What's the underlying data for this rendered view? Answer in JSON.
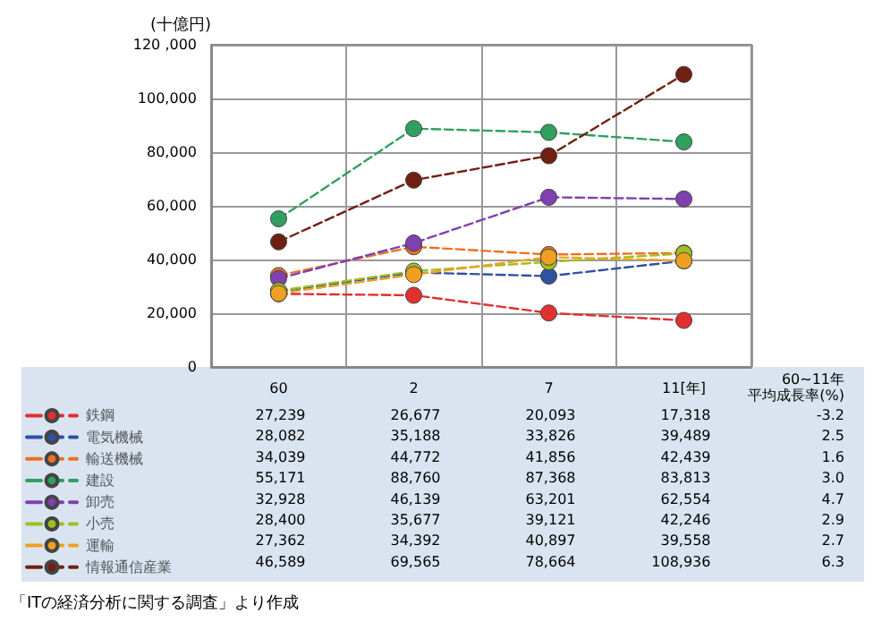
{
  "chart_data": {
    "type": "line",
    "ylabel": "(十億円)",
    "categories": [
      "60",
      "2",
      "7",
      "11[年]"
    ],
    "ylim": [
      0,
      120000
    ],
    "yticks": [
      0,
      {
        "value": 20000,
        "label": "20,000"
      },
      {
        "value": 40000,
        "label": "40,000"
      },
      {
        "value": 60000,
        "label": "60,000"
      },
      {
        "value": 80000,
        "label": "80,000"
      },
      {
        "value": 100000,
        "label": "100,000"
      },
      {
        "value": 120000,
        "label": "120 ,000"
      }
    ],
    "grid": true,
    "legend": "bottom",
    "marker": "circle",
    "line_style": "dashed",
    "series": [
      {
        "name": "鉄鋼",
        "color": "#e03030",
        "values": [
          27239,
          26677,
          20093,
          17318
        ],
        "value_labels": [
          "27,239",
          "26,677",
          "20,093",
          "17,318"
        ]
      },
      {
        "name": "電気機械",
        "color": "#3050a0",
        "values": [
          28082,
          35188,
          33826,
          39489
        ],
        "value_labels": [
          "28,082",
          "35,188",
          "33,826",
          "39,489"
        ]
      },
      {
        "name": "輸送機械",
        "color": "#f07020",
        "values": [
          34039,
          44772,
          41856,
          42439
        ],
        "value_labels": [
          "34,039",
          "44,772",
          "41,856",
          "42,439"
        ]
      },
      {
        "name": "建設",
        "color": "#30a060",
        "values": [
          55171,
          88760,
          87368,
          83813
        ],
        "value_labels": [
          "55,171",
          "88,760",
          "87,368",
          "83,813"
        ]
      },
      {
        "name": "卸売",
        "color": "#8040b0",
        "values": [
          32928,
          46139,
          63201,
          62554
        ],
        "value_labels": [
          "32,928",
          "46,139",
          "63,201",
          "62,554"
        ]
      },
      {
        "name": "小売",
        "color": "#a0c020",
        "values": [
          28400,
          35677,
          39121,
          42246
        ],
        "value_labels": [
          "28,400",
          "35,677",
          "39,121",
          "42,246"
        ]
      },
      {
        "name": "運輸",
        "color": "#f0a020",
        "values": [
          27362,
          34392,
          40897,
          39558
        ],
        "value_labels": [
          "27,362",
          "34,392",
          "40,897",
          "39,558"
        ]
      },
      {
        "name": "情報通信産業",
        "color": "#702010",
        "values": [
          46589,
          69565,
          78664,
          108936
        ],
        "value_labels": [
          "46,589",
          "69,565",
          "78,664",
          "108,936"
        ]
      }
    ],
    "annotations": [
      "60~11年",
      "平均成長率(%)",
      "-3.2",
      "2.5",
      "1.6",
      "3.0",
      "4.7",
      "2.9",
      "2.7",
      "6.3",
      "「ITの経済分析に関する調査」より作成"
    ]
  }
}
